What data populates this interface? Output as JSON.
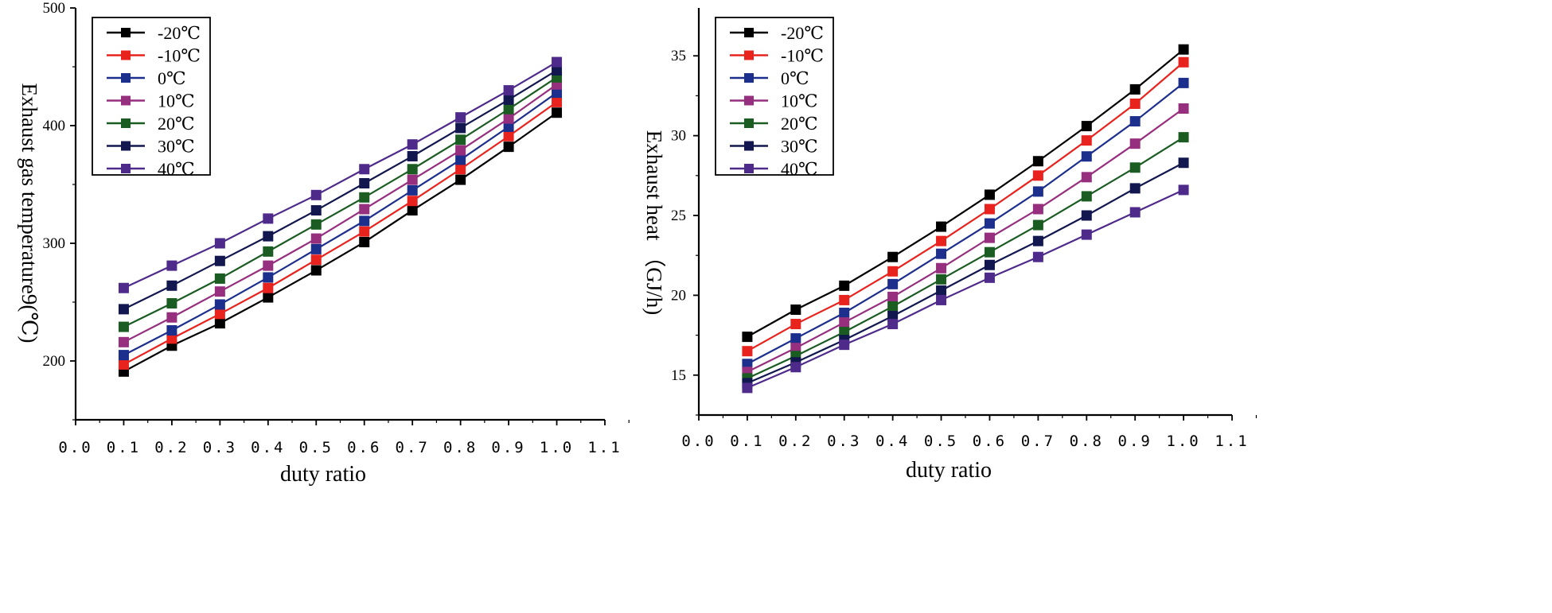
{
  "chart_data": [
    {
      "type": "line",
      "title": "",
      "xlabel": "duty ratio",
      "ylabel": "Exhaust  gas  temperature9(℃)",
      "xlim": [
        0.0,
        1.1
      ],
      "ylim": [
        150,
        500
      ],
      "xticks": [
        "0.0",
        "0.1",
        "0.2",
        "0.3",
        "0.4",
        "0.5",
        "0.6",
        "0.7",
        "0.8",
        "0.9",
        "1.0",
        "1.1"
      ],
      "yticks": [
        "200",
        "300",
        "400",
        "500"
      ],
      "grid": false,
      "legend_position": "top-left",
      "x": [
        0.1,
        0.2,
        0.3,
        0.4,
        0.5,
        0.6,
        0.7,
        0.8,
        0.9,
        1.0
      ],
      "series": [
        {
          "name": "-20℃",
          "color": "#000000",
          "values": [
            191,
            213,
            232,
            254,
            277,
            301,
            328,
            354,
            382,
            411
          ]
        },
        {
          "name": "-10℃",
          "color": "#e8231e",
          "values": [
            197,
            219,
            240,
            262,
            286,
            310,
            336,
            363,
            391,
            420
          ]
        },
        {
          "name": "0℃",
          "color": "#1d2f8c",
          "values": [
            205,
            226,
            248,
            271,
            295,
            319,
            345,
            371,
            399,
            428
          ]
        },
        {
          "name": "10℃",
          "color": "#962f7e",
          "values": [
            216,
            237,
            259,
            281,
            304,
            329,
            354,
            379,
            406,
            435
          ]
        },
        {
          "name": "20℃",
          "color": "#1b5c23",
          "values": [
            229,
            249,
            270,
            293,
            316,
            339,
            363,
            388,
            414,
            441
          ]
        },
        {
          "name": "30℃",
          "color": "#12174f",
          "values": [
            244,
            264,
            285,
            306,
            328,
            351,
            374,
            398,
            422,
            447
          ]
        },
        {
          "name": "40℃",
          "color": "#4e2a8a",
          "values": [
            262,
            281,
            300,
            321,
            341,
            363,
            384,
            407,
            430,
            454
          ]
        }
      ]
    },
    {
      "type": "line",
      "title": "",
      "xlabel": "duty ratio",
      "ylabel": "Exhaust heat （GJ/h)",
      "xlim": [
        0.0,
        1.1
      ],
      "ylim": [
        12.5,
        38
      ],
      "xticks": [
        "0.0",
        "0.1",
        "0.2",
        "0.3",
        "0.4",
        "0.5",
        "0.6",
        "0.7",
        "0.8",
        "0.9",
        "1.0",
        "1.1"
      ],
      "yticks": [
        "15",
        "20",
        "25",
        "30",
        "35"
      ],
      "grid": false,
      "legend_position": "top-left",
      "x": [
        0.1,
        0.2,
        0.3,
        0.4,
        0.5,
        0.6,
        0.7,
        0.8,
        0.9,
        1.0
      ],
      "series": [
        {
          "name": "-20℃",
          "color": "#000000",
          "values": [
            17.4,
            19.1,
            20.6,
            22.4,
            24.3,
            26.3,
            28.4,
            30.6,
            32.9,
            35.4
          ]
        },
        {
          "name": "-10℃",
          "color": "#e8231e",
          "values": [
            16.5,
            18.2,
            19.7,
            21.5,
            23.4,
            25.4,
            27.5,
            29.7,
            32.0,
            34.6
          ]
        },
        {
          "name": "0℃",
          "color": "#1d2f8c",
          "values": [
            15.7,
            17.3,
            18.9,
            20.7,
            22.6,
            24.5,
            26.5,
            28.7,
            30.9,
            33.3
          ]
        },
        {
          "name": "10℃",
          "color": "#962f7e",
          "values": [
            15.2,
            16.7,
            18.3,
            19.9,
            21.7,
            23.6,
            25.4,
            27.4,
            29.5,
            31.7
          ]
        },
        {
          "name": "20℃",
          "color": "#1b5c23",
          "values": [
            14.8,
            16.2,
            17.7,
            19.3,
            21.0,
            22.7,
            24.4,
            26.2,
            28.0,
            29.9
          ]
        },
        {
          "name": "30℃",
          "color": "#12174f",
          "values": [
            14.5,
            15.8,
            17.2,
            18.7,
            20.3,
            21.9,
            23.4,
            25.0,
            26.7,
            28.3
          ]
        },
        {
          "name": "40℃",
          "color": "#4e2a8a",
          "values": [
            14.2,
            15.5,
            16.9,
            18.2,
            19.7,
            21.1,
            22.4,
            23.8,
            25.2,
            26.6
          ]
        }
      ]
    }
  ]
}
